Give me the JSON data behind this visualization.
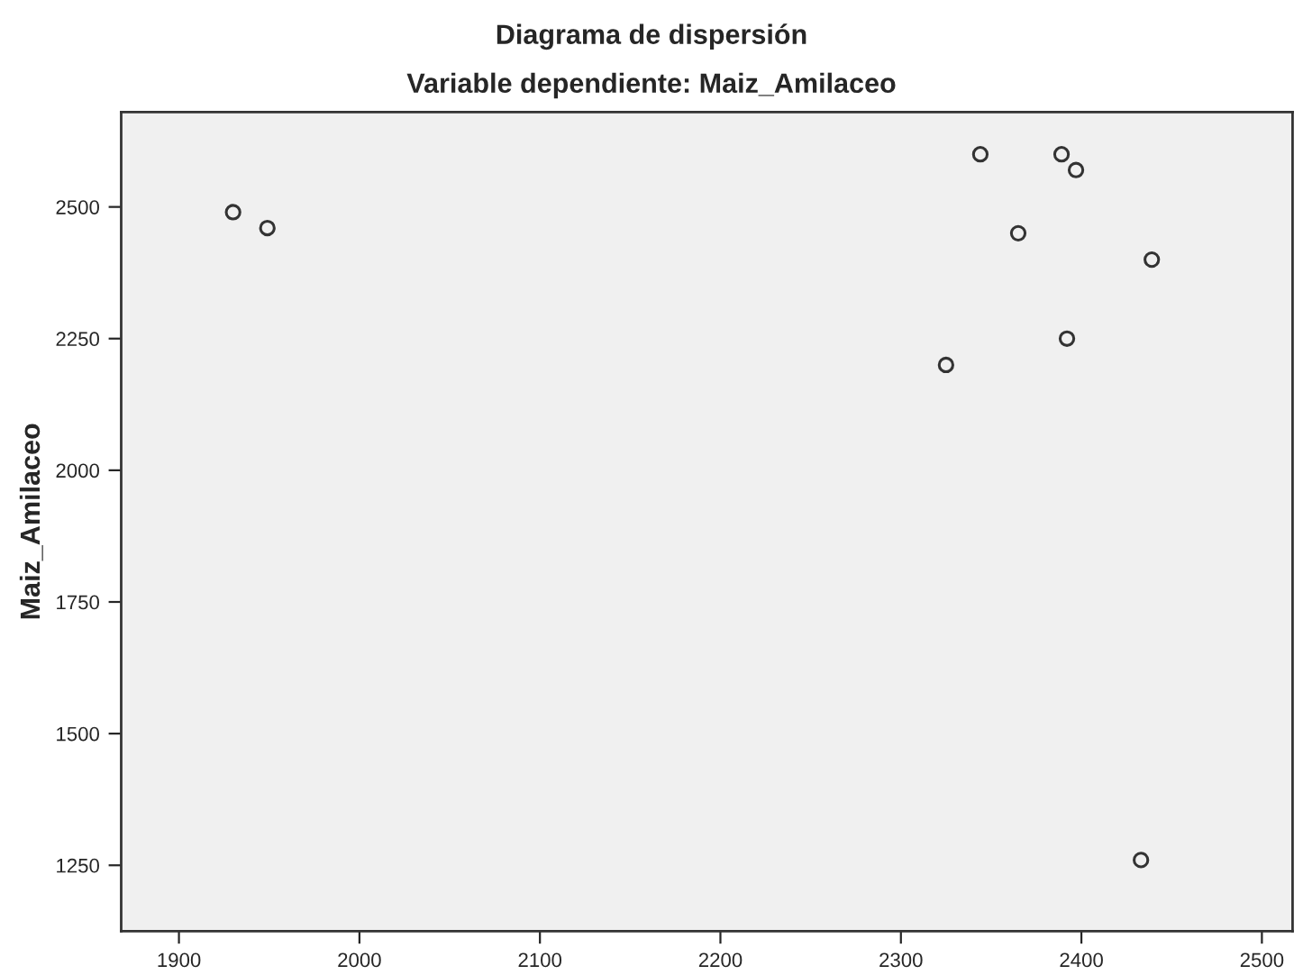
{
  "chart_data": {
    "type": "scatter",
    "title": "Diagrama de dispersión",
    "subtitle": "Variable dependiente: Maiz_Amilaceo",
    "ylabel": "Maiz_Amilaceo",
    "x": [
      1930,
      1949,
      2344,
      2389,
      2397,
      2365,
      2439,
      2392,
      2325,
      2433
    ],
    "series": [
      {
        "color": "#333333",
        "values": [
          2490,
          2460,
          2600,
          2600,
          2570,
          2450,
          2400,
          2250,
          2200,
          1260
        ]
      }
    ],
    "xlim": [
      1868,
      2517
    ],
    "xticks": [
      1900,
      2000,
      2100,
      2200,
      2300,
      2400,
      2500
    ],
    "ylim": [
      1125,
      2680
    ],
    "yticks": [
      1250,
      1500,
      1750,
      2000,
      2250,
      2500
    ],
    "grid": false,
    "marker": "circle"
  }
}
